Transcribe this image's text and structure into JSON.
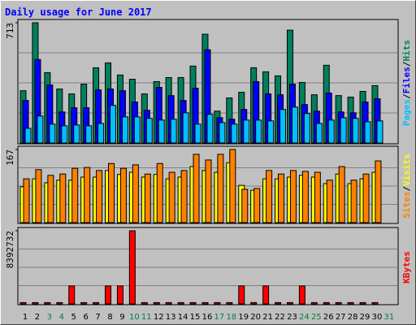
{
  "title": "Daily usage for June 2017",
  "legend_separator": "/",
  "categories": [
    "1",
    "2",
    "3",
    "4",
    "5",
    "6",
    "7",
    "8",
    "9",
    "10",
    "11",
    "12",
    "13",
    "14",
    "15",
    "16",
    "17",
    "18",
    "19",
    "20",
    "21",
    "22",
    "23",
    "24",
    "25",
    "26",
    "27",
    "28",
    "29",
    "30",
    "31"
  ],
  "weekend_indices": [
    2,
    3,
    9,
    10,
    16,
    17,
    23,
    24,
    30
  ],
  "weekend_color": "#008040",
  "chart_data": [
    {
      "type": "bar",
      "ylim": [
        0,
        713
      ],
      "yticks": [
        713
      ],
      "series": [
        {
          "name": "Pages",
          "color": "#00c0ff",
          "values": [
            87,
            160,
            112,
            102,
            107,
            102,
            116,
            223,
            155,
            155,
            146,
            136,
            141,
            179,
            112,
            170,
            121,
            112,
            136,
            136,
            131,
            199,
            213,
            175,
            116,
            136,
            150,
            146,
            126,
            131,
            null
          ]
        },
        {
          "name": "Files",
          "color": "#0000ff",
          "values": [
            252,
            495,
            344,
            184,
            209,
            209,
            315,
            320,
            310,
            243,
            194,
            330,
            281,
            252,
            325,
            553,
            150,
            141,
            199,
            364,
            291,
            286,
            349,
            228,
            189,
            296,
            184,
            179,
            243,
            262,
            null
          ]
        },
        {
          "name": "Hits",
          "color": "#00805c",
          "values": [
            310,
            713,
            417,
            320,
            291,
            349,
            446,
            475,
            403,
            378,
            291,
            364,
            388,
            388,
            456,
            645,
            189,
            267,
            301,
            446,
            422,
            398,
            669,
            359,
            286,
            461,
            281,
            272,
            306,
            340,
            null
          ]
        }
      ]
    },
    {
      "type": "bar",
      "ylim": [
        0,
        167
      ],
      "yticks": [
        167
      ],
      "series": [
        {
          "name": "Sites",
          "color": "#ff8000",
          "values": [
            100,
            121,
            108,
            111,
            124,
            126,
            119,
            135,
            124,
            132,
            111,
            135,
            115,
            119,
            156,
            143,
            156,
            167,
            76,
            78,
            119,
            111,
            119,
            117,
            115,
            97,
            128,
            97,
            111,
            141,
            null
          ]
        },
        {
          "name": "Visits",
          "color": "#ffff00",
          "values": [
            82,
            100,
            91,
            97,
            97,
            104,
            104,
            119,
            110,
            115,
            104,
            110,
            100,
            104,
            128,
            119,
            115,
            137,
            85,
            74,
            100,
            100,
            104,
            108,
            104,
            89,
            111,
            89,
            100,
            115,
            null
          ]
        }
      ]
    },
    {
      "type": "bar",
      "ylim": [
        0,
        8392732
      ],
      "yticks": [
        8392732
      ],
      "series": [
        {
          "name": "KBytes",
          "color": "#ff0000",
          "values": [
            150000,
            150000,
            150000,
            150000,
            2051556,
            150000,
            150000,
            2051556,
            2051556,
            8392732,
            150000,
            150000,
            150000,
            150000,
            150000,
            150000,
            150000,
            150000,
            2051556,
            150000,
            2051556,
            150000,
            150000,
            2051556,
            150000,
            150000,
            150000,
            150000,
            150000,
            150000,
            null
          ]
        }
      ]
    }
  ]
}
